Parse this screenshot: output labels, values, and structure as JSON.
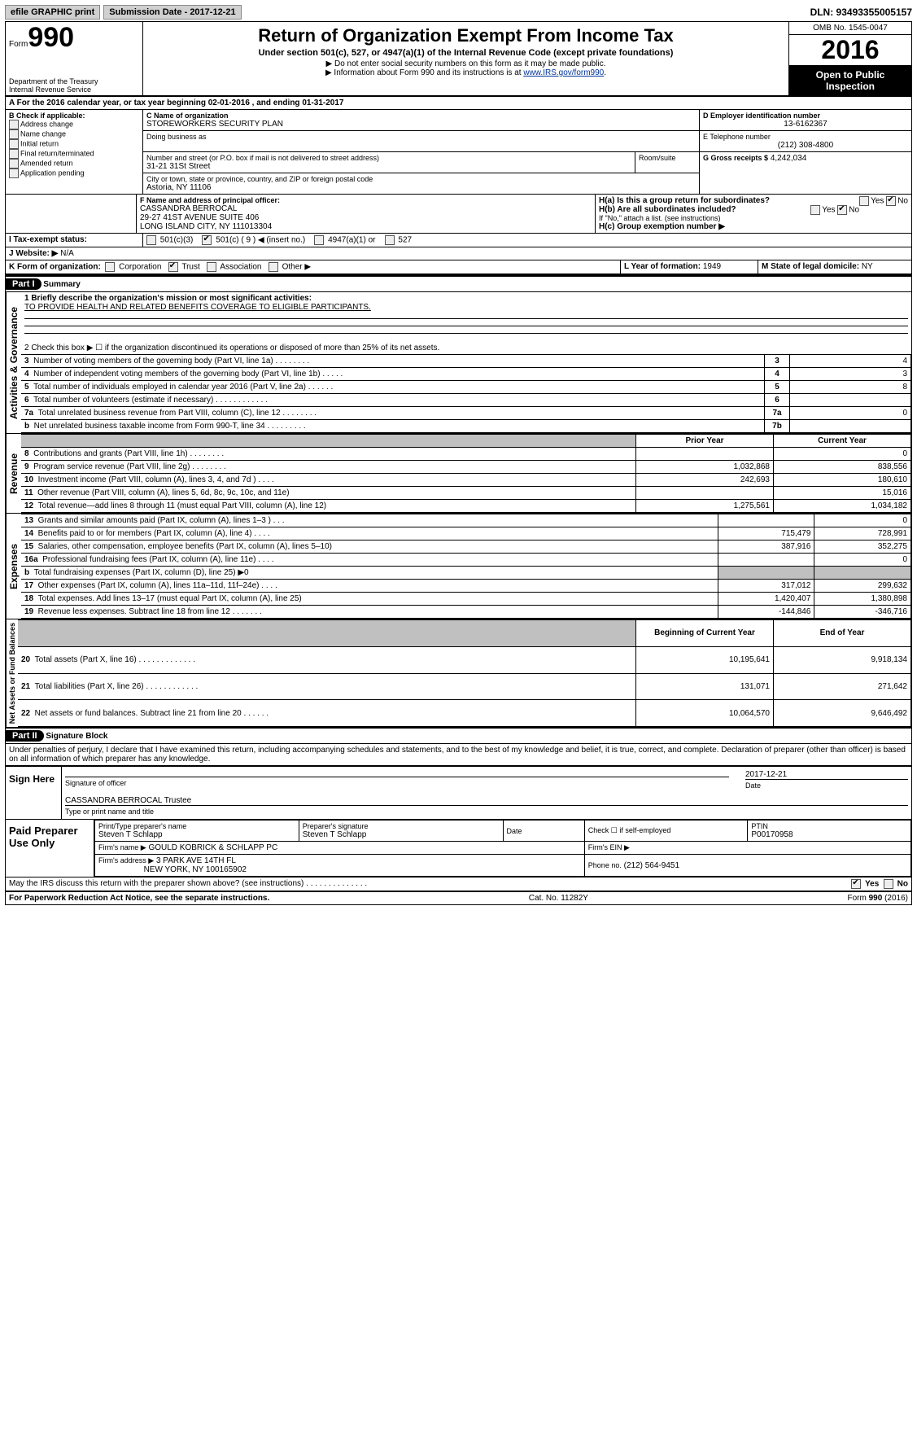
{
  "topbar": {
    "efile": "efile GRAPHIC print",
    "subdate_label": "Submission Date - 2017-12-21",
    "dln": "DLN: 93493355005157"
  },
  "header": {
    "form_label": "Form",
    "form_num": "990",
    "dept": "Department of the Treasury",
    "irs": "Internal Revenue Service",
    "title": "Return of Organization Exempt From Income Tax",
    "subtitle": "Under section 501(c), 527, or 4947(a)(1) of the Internal Revenue Code (except private foundations)",
    "bullet1": "▶ Do not enter social security numbers on this form as it may be made public.",
    "bullet2_pre": "▶ Information about Form 990 and its instructions is at ",
    "bullet2_link": "www.IRS.gov/form990",
    "omb": "OMB No. 1545-0047",
    "year": "2016",
    "public1": "Open to Public",
    "public2": "Inspection"
  },
  "line_a": "A  For the 2016 calendar year, or tax year beginning 02-01-2016   , and ending 01-31-2017",
  "section_b": {
    "heading": "B Check if applicable:",
    "opts": [
      "Address change",
      "Name change",
      "Initial return",
      "Final return/terminated",
      "Amended return",
      "Application pending"
    ],
    "c_name_lbl": "C Name of organization",
    "c_name": "STOREWORKERS SECURITY PLAN",
    "dba_lbl": "Doing business as",
    "street_lbl": "Number and street (or P.O. box if mail is not delivered to street address)",
    "room_lbl": "Room/suite",
    "street": "31-21 31St Street",
    "city_lbl": "City or town, state or province, country, and ZIP or foreign postal code",
    "city": "Astoria, NY  11106",
    "d_lbl": "D Employer identification number",
    "d_val": "13-6162367",
    "e_lbl": "E Telephone number",
    "e_val": "(212) 308-4800",
    "g_lbl": "G Gross receipts $",
    "g_val": "4,242,034",
    "f_lbl": "F  Name and address of principal officer:",
    "f_name": "CASSANDRA BERROCAL",
    "f_addr1": "29-27 41ST AVENUE SUITE 406",
    "f_addr2": "LONG ISLAND CITY, NY  111013304",
    "h_a": "H(a)  Is this a group return for subordinates?",
    "h_b": "H(b)  Are all subordinates included?",
    "h_note": "If \"No,\" attach a list. (see instructions)",
    "h_c": "H(c)  Group exemption number ▶",
    "yes": "Yes",
    "no": "No"
  },
  "tax_status": {
    "i_lbl": "I  Tax-exempt status:",
    "opts": [
      "501(c)(3)",
      "501(c) ( 9 ) ◀ (insert no.)",
      "4947(a)(1) or",
      "527"
    ]
  },
  "website": {
    "lbl": "J Website: ▶",
    "val": "N/A"
  },
  "k_line": {
    "lbl": "K Form of organization:",
    "opts": [
      "Corporation",
      "Trust",
      "Association",
      "Other ▶"
    ],
    "l_lbl": "L Year of formation:",
    "l_val": "1949",
    "m_lbl": "M State of legal domicile:",
    "m_val": "NY"
  },
  "part1": {
    "title": "Part I",
    "subtitle": "Summary",
    "q1_lbl": "1  Briefly describe the organization's mission or most significant activities:",
    "q1_val": "TO PROVIDE HEALTH AND RELATED BENEFITS COVERAGE TO ELIGIBLE PARTICIPANTS.",
    "q2": "2   Check this box ▶ ☐  if the organization discontinued its operations or disposed of more than 25% of its net assets.",
    "rows_gov": [
      {
        "n": "3",
        "t": "Number of voting members of the governing body (Part VI, line 1a)  .   .   .   .   .   .   .   .",
        "box": "3",
        "v": "4"
      },
      {
        "n": "4",
        "t": "Number of independent voting members of the governing body (Part VI, line 1b)  .   .   .   .   .",
        "box": "4",
        "v": "3"
      },
      {
        "n": "5",
        "t": "Total number of individuals employed in calendar year 2016 (Part V, line 2a)  .   .   .   .   .   .",
        "box": "5",
        "v": "8"
      },
      {
        "n": "6",
        "t": "Total number of volunteers (estimate if necessary)  .   .   .   .   .   .   .   .   .   .   .   .",
        "box": "6",
        "v": ""
      },
      {
        "n": "7a",
        "t": "Total unrelated business revenue from Part VIII, column (C), line 12  .   .   .   .   .   .   .   .",
        "box": "7a",
        "v": "0"
      },
      {
        "n": "b",
        "t": "Net unrelated business taxable income from Form 990-T, line 34  .   .   .   .   .   .   .   .   .",
        "box": "7b",
        "v": ""
      }
    ],
    "col_prior": "Prior Year",
    "col_curr": "Current Year",
    "rows_rev": [
      {
        "n": "8",
        "t": "Contributions and grants (Part VIII, line 1h)   .   .   .   .   .   .   .   .",
        "p": "",
        "c": "0"
      },
      {
        "n": "9",
        "t": "Program service revenue (Part VIII, line 2g)   .   .   .   .   .   .   .   .",
        "p": "1,032,868",
        "c": "838,556"
      },
      {
        "n": "10",
        "t": "Investment income (Part VIII, column (A), lines 3, 4, and 7d )   .   .   .   .",
        "p": "242,693",
        "c": "180,610"
      },
      {
        "n": "11",
        "t": "Other revenue (Part VIII, column (A), lines 5, 6d, 8c, 9c, 10c, and 11e)",
        "p": "",
        "c": "15,016"
      },
      {
        "n": "12",
        "t": "Total revenue—add lines 8 through 11 (must equal Part VIII, column (A), line 12)",
        "p": "1,275,561",
        "c": "1,034,182"
      }
    ],
    "rows_exp": [
      {
        "n": "13",
        "t": "Grants and similar amounts paid (Part IX, column (A), lines 1–3 )   .   .   .",
        "p": "",
        "c": "0"
      },
      {
        "n": "14",
        "t": "Benefits paid to or for members (Part IX, column (A), line 4)   .   .   .   .",
        "p": "715,479",
        "c": "728,991"
      },
      {
        "n": "15",
        "t": "Salaries, other compensation, employee benefits (Part IX, column (A), lines 5–10)",
        "p": "387,916",
        "c": "352,275"
      },
      {
        "n": "16a",
        "t": "Professional fundraising fees (Part IX, column (A), line 11e)   .   .   .   .",
        "p": "",
        "c": "0"
      },
      {
        "n": "b",
        "t": "Total fundraising expenses (Part IX, column (D), line 25) ▶0",
        "p": "grey",
        "c": "grey"
      },
      {
        "n": "17",
        "t": "Other expenses (Part IX, column (A), lines 11a–11d, 11f–24e)   .   .   .   .",
        "p": "317,012",
        "c": "299,632"
      },
      {
        "n": "18",
        "t": "Total expenses. Add lines 13–17 (must equal Part IX, column (A), line 25)",
        "p": "1,420,407",
        "c": "1,380,898"
      },
      {
        "n": "19",
        "t": "Revenue less expenses. Subtract line 18 from line 12  .   .   .   .   .   .   .",
        "p": "-144,846",
        "c": "-346,716"
      }
    ],
    "col_begin": "Beginning of Current Year",
    "col_end": "End of Year",
    "rows_net": [
      {
        "n": "20",
        "t": "Total assets (Part X, line 16)  .   .   .   .   .   .   .   .   .   .   .   .   .",
        "p": "10,195,641",
        "c": "9,918,134"
      },
      {
        "n": "21",
        "t": "Total liabilities (Part X, line 26)  .   .   .   .   .   .   .   .   .   .   .   .",
        "p": "131,071",
        "c": "271,642"
      },
      {
        "n": "22",
        "t": "Net assets or fund balances. Subtract line 21 from line 20  .   .   .   .   .   .",
        "p": "10,064,570",
        "c": "9,646,492"
      }
    ],
    "side_gov": "Activities & Governance",
    "side_rev": "Revenue",
    "side_exp": "Expenses",
    "side_net": "Net Assets or Fund Balances"
  },
  "part2": {
    "title": "Part II",
    "subtitle": "Signature Block",
    "perjury": "Under penalties of perjury, I declare that I have examined this return, including accompanying schedules and statements, and to the best of my knowledge and belief, it is true, correct, and complete. Declaration of preparer (other than officer) is based on all information of which preparer has any knowledge.",
    "sign_here": "Sign Here",
    "sig_officer_lbl": "Signature of officer",
    "date_lbl": "Date",
    "date_val": "2017-12-21",
    "name_title": "CASSANDRA BERROCAL Trustee",
    "name_title_lbl": "Type or print name and title",
    "paid": "Paid Preparer Use Only",
    "prep_name_lbl": "Print/Type preparer's name",
    "prep_name": "Steven T Schlapp",
    "prep_sig_lbl": "Preparer's signature",
    "prep_sig": "Steven T Schlapp",
    "prep_date_lbl": "Date",
    "self_emp": "Check ☐ if self-employed",
    "ptin_lbl": "PTIN",
    "ptin": "P00170958",
    "firm_name_lbl": "Firm's name    ▶",
    "firm_name": "GOULD KOBRICK & SCHLAPP PC",
    "firm_ein_lbl": "Firm's EIN ▶",
    "firm_addr_lbl": "Firm's address ▶",
    "firm_addr1": "3 PARK AVE 14TH FL",
    "firm_addr2": "NEW YORK, NY  100165902",
    "firm_phone_lbl": "Phone no.",
    "firm_phone": "(212) 564-9451",
    "discuss": "May the IRS discuss this return with the preparer shown above? (see instructions)   .   .   .   .   .   .   .   .   .   .   .   .   .   .",
    "yes": "Yes",
    "no": "No"
  },
  "footer": {
    "left": "For Paperwork Reduction Act Notice, see the separate instructions.",
    "mid": "Cat. No. 11282Y",
    "right": "Form 990 (2016)"
  }
}
